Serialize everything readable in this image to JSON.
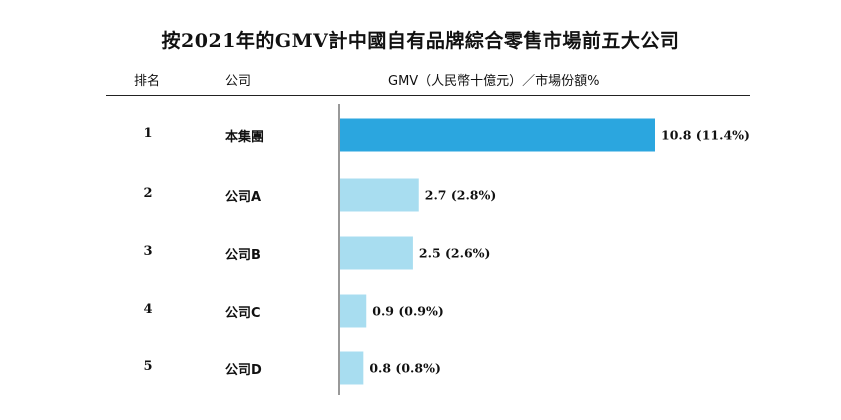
{
  "title": "按2021年的GMV計中國自有品牌綜合零售市場前五大公司",
  "headers": {
    "rank": "排名",
    "company": "公司",
    "metric": "GMV（人民幣十億元）／市場份額%"
  },
  "rows": [
    {
      "rank": "1",
      "company": "本集團"
    },
    {
      "rank": "2",
      "company": "公司A"
    },
    {
      "rank": "3",
      "company": "公司B"
    },
    {
      "rank": "4",
      "company": "公司C"
    },
    {
      "rank": "5",
      "company": "公司D"
    }
  ],
  "colors": {
    "highlight": "#2ba6df",
    "others": "#a8ddf0",
    "axis": "#333333"
  },
  "chart_data": {
    "type": "bar",
    "orientation": "horizontal",
    "title": "按2021年的GMV計中國自有品牌綜合零售市場前五大公司",
    "categories": [
      "本集團",
      "公司A",
      "公司B",
      "公司C",
      "公司D"
    ],
    "values": [
      10.8,
      2.7,
      2.5,
      0.9,
      0.8
    ],
    "shares_percent": [
      11.4,
      2.8,
      2.6,
      0.9,
      0.8
    ],
    "data_labels": [
      "10.8 (11.4%)",
      "2.7 (2.8%)",
      "2.5 (2.6%)",
      "0.9 (0.9%)",
      "0.8 (0.8%)"
    ],
    "xlabel": "GMV（人民幣十億元）／市場份額%",
    "ylabel": "",
    "grid": false,
    "legend": "none"
  }
}
